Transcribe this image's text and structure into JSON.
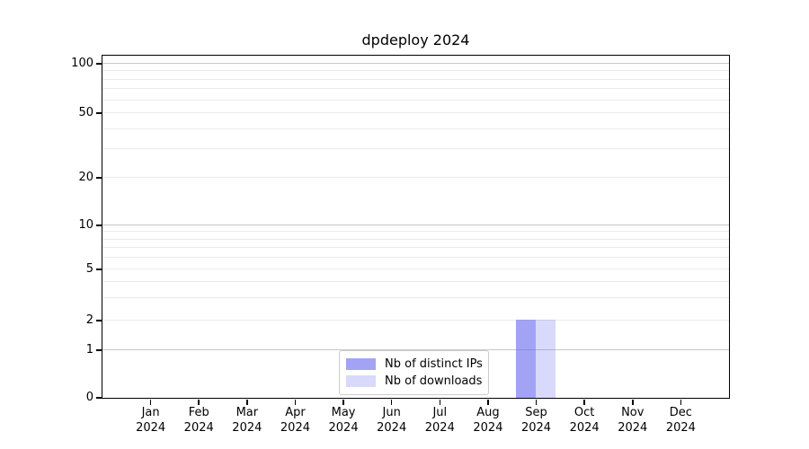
{
  "chart_data": {
    "type": "bar",
    "title": "dpdeploy 2024",
    "x_categories": [
      "Jan",
      "Feb",
      "Mar",
      "Apr",
      "May",
      "Jun",
      "Jul",
      "Aug",
      "Sep",
      "Oct",
      "Nov",
      "Dec"
    ],
    "x_year_label": "2024",
    "series": [
      {
        "name": "Nb of distinct IPs",
        "color_base_rgb": "102,102,238",
        "alpha": 0.6,
        "rendered_hex": "#a3a3f5",
        "values": [
          0,
          0,
          0,
          0,
          0,
          0,
          0,
          0,
          2,
          0,
          0,
          0
        ]
      },
      {
        "name": "Nb of downloads",
        "color_base_rgb": "102,102,238",
        "alpha": 0.25,
        "rendered_hex": "#d9d9fb",
        "values": [
          0,
          0,
          0,
          0,
          0,
          0,
          0,
          0,
          2,
          0,
          0,
          0
        ]
      }
    ],
    "xlabel": "",
    "ylabel": "",
    "y_scale": "symlog",
    "xlim": [
      -1,
      12
    ],
    "ylim": [
      0,
      110
    ],
    "y_ticks": [
      0,
      1,
      2,
      5,
      10,
      20,
      50,
      100
    ],
    "y_major_gridlines": [
      1,
      10,
      100
    ],
    "y_minor_gridlines": [
      2,
      3,
      4,
      5,
      6,
      7,
      8,
      9,
      20,
      30,
      40,
      50,
      60,
      70,
      80,
      90
    ],
    "y_anchor_fractions": [
      [
        0,
        0
      ],
      [
        1,
        0.139
      ],
      [
        2,
        0.226
      ],
      [
        5,
        0.375
      ],
      [
        10,
        0.504
      ],
      [
        20,
        0.643
      ],
      [
        50,
        0.832
      ],
      [
        100,
        0.976
      ]
    ],
    "grid": "both",
    "legend": {
      "position": "lower center",
      "entries": [
        "Nb of distinct IPs",
        "Nb of downloads"
      ]
    },
    "colors": {
      "grid_major": "#c7c7c7",
      "grid_minor": "#ebebeb",
      "spine": "#000000",
      "text": "#000000",
      "background": "#ffffff",
      "legend_border": "#cccccc"
    }
  }
}
